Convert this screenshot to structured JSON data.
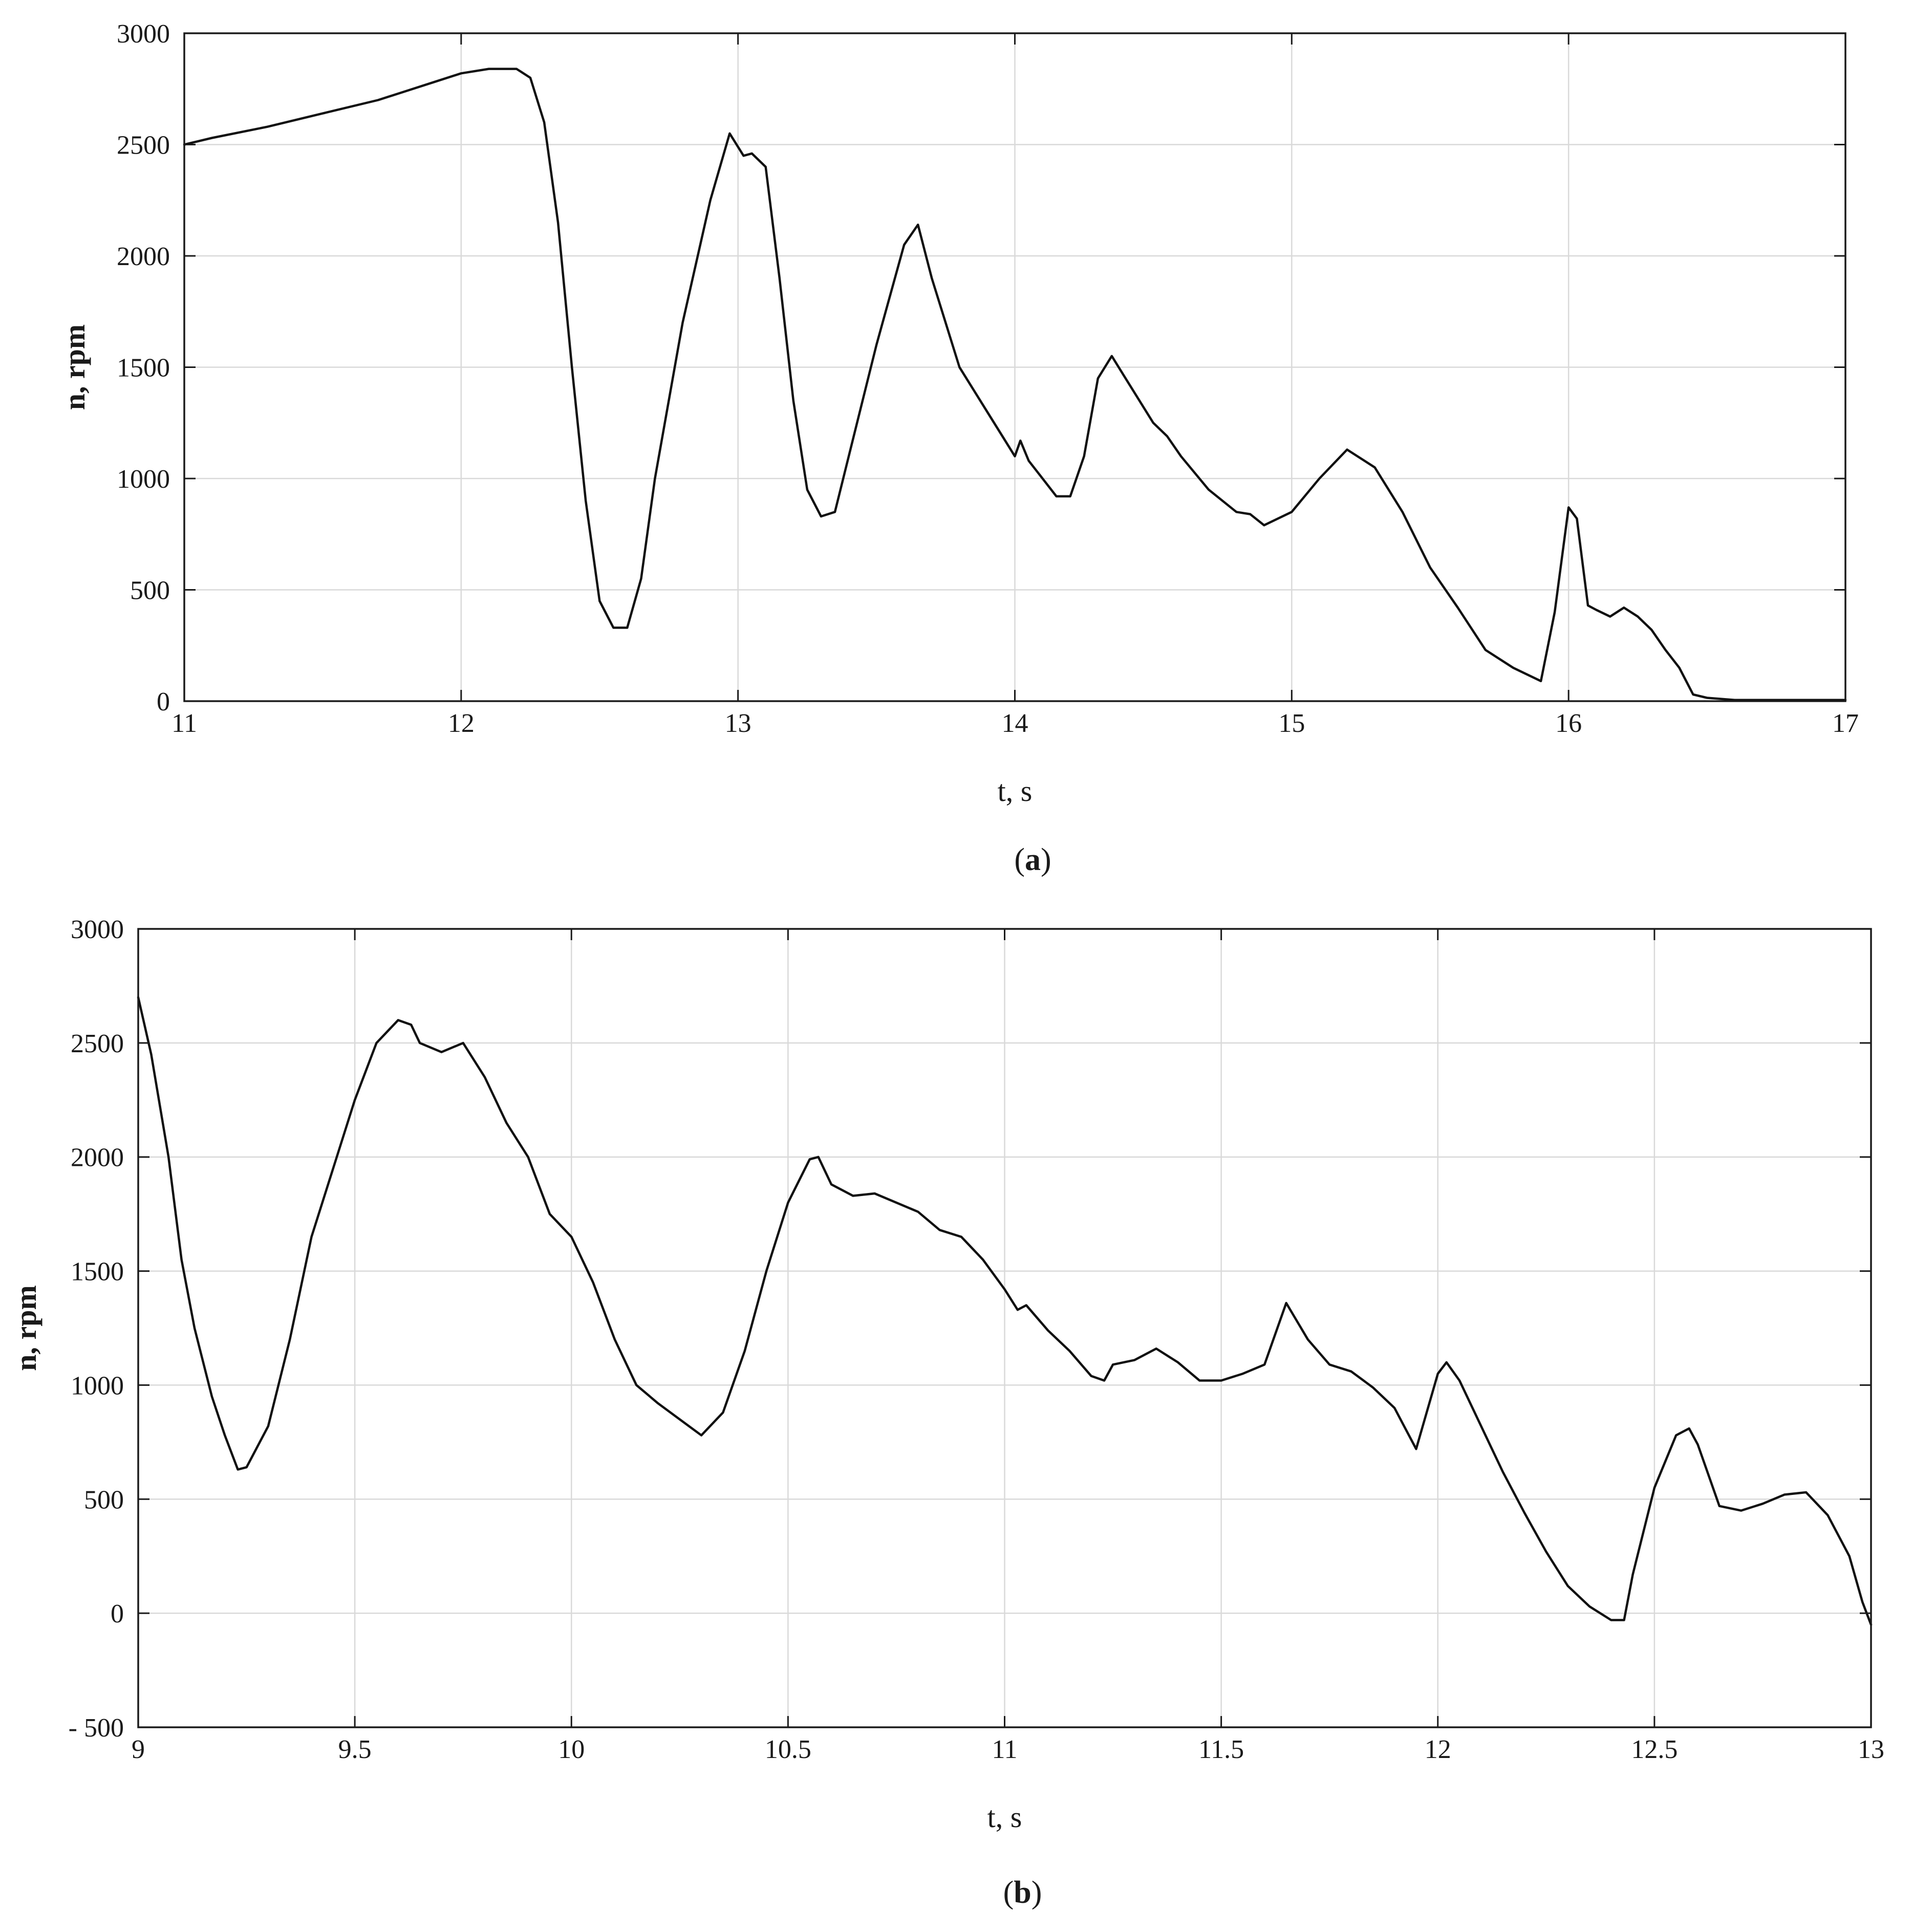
{
  "chart_data": [
    {
      "type": "line",
      "panel": "(a)",
      "caption": {
        "open": "(",
        "letter": "a",
        "close": ")"
      },
      "xlabel": "t, s",
      "ylabel": "n, rpm",
      "xlim": [
        11,
        17
      ],
      "ylim": [
        0,
        3000
      ],
      "xticks": [
        11,
        12,
        13,
        14,
        15,
        16,
        17
      ],
      "xtick_labels": [
        "11",
        "12",
        "13",
        "14",
        "15",
        "16",
        "17"
      ],
      "yticks": [
        0,
        500,
        1000,
        1500,
        2000,
        2500,
        3000
      ],
      "ytick_labels": [
        "0",
        "500",
        "1000",
        "1500",
        "2000",
        "2500",
        "3000"
      ],
      "grid": true,
      "series": [
        {
          "x": [
            11.0,
            11.1,
            11.3,
            11.5,
            11.7,
            11.8,
            11.9,
            12.0,
            12.1,
            12.2,
            12.25,
            12.3,
            12.35,
            12.4,
            12.45,
            12.5,
            12.55,
            12.6,
            12.65,
            12.7,
            12.8,
            12.9,
            12.97,
            13.02,
            13.05,
            13.1,
            13.15,
            13.2,
            13.25,
            13.3,
            13.35,
            13.4,
            13.5,
            13.6,
            13.65,
            13.7,
            13.8,
            13.9,
            13.95,
            14.0,
            14.02,
            14.05,
            14.1,
            14.15,
            14.2,
            14.25,
            14.3,
            14.35,
            14.4,
            14.5,
            14.55,
            14.6,
            14.7,
            14.8,
            14.85,
            14.9,
            15.0,
            15.1,
            15.2,
            15.3,
            15.4,
            15.5,
            15.6,
            15.7,
            15.8,
            15.85,
            15.9,
            15.95,
            16.0,
            16.03,
            16.07,
            16.1,
            16.15,
            16.2,
            16.25,
            16.3,
            16.35,
            16.4,
            16.45,
            16.5,
            16.6,
            16.8,
            17.0
          ],
          "y": [
            2500,
            2530,
            2580,
            2640,
            2700,
            2740,
            2780,
            2820,
            2840,
            2840,
            2800,
            2600,
            2150,
            1500,
            900,
            450,
            330,
            330,
            550,
            1000,
            1700,
            2250,
            2550,
            2450,
            2460,
            2400,
            1900,
            1350,
            950,
            830,
            850,
            1100,
            1600,
            2050,
            2140,
            1900,
            1500,
            1300,
            1200,
            1100,
            1170,
            1080,
            1000,
            920,
            920,
            1100,
            1450,
            1550,
            1450,
            1250,
            1190,
            1100,
            950,
            850,
            840,
            790,
            850,
            1000,
            1130,
            1050,
            850,
            600,
            420,
            230,
            150,
            120,
            90,
            400,
            870,
            820,
            430,
            410,
            380,
            420,
            380,
            320,
            230,
            150,
            30,
            15,
            5,
            5,
            5
          ]
        }
      ]
    },
    {
      "type": "line",
      "panel": "(b)",
      "caption": {
        "open": "(",
        "letter": "b",
        "close": ")"
      },
      "xlabel": "t, s",
      "ylabel": "n, rpm",
      "xlim": [
        9,
        13
      ],
      "ylim": [
        -500,
        3000
      ],
      "xticks": [
        9,
        9.5,
        10,
        10.5,
        11,
        11.5,
        12,
        12.5,
        13
      ],
      "xtick_labels": [
        "9",
        "9.5",
        "10",
        "10.5",
        "11",
        "11.5",
        "12",
        "12.5",
        "13"
      ],
      "yticks": [
        -500,
        0,
        500,
        1000,
        1500,
        2000,
        2500,
        3000
      ],
      "ytick_labels": [
        "- 500",
        "0",
        "500",
        "1000",
        "1500",
        "2000",
        "2500",
        "3000"
      ],
      "grid": true,
      "series": [
        {
          "x": [
            9.0,
            9.03,
            9.07,
            9.1,
            9.13,
            9.17,
            9.2,
            9.23,
            9.25,
            9.3,
            9.35,
            9.4,
            9.45,
            9.5,
            9.55,
            9.6,
            9.63,
            9.65,
            9.7,
            9.75,
            9.8,
            9.85,
            9.9,
            9.95,
            10.0,
            10.05,
            10.1,
            10.15,
            10.2,
            10.25,
            10.3,
            10.35,
            10.4,
            10.45,
            10.5,
            10.55,
            10.57,
            10.6,
            10.65,
            10.7,
            10.8,
            10.85,
            10.9,
            10.95,
            11.0,
            11.03,
            11.05,
            11.1,
            11.15,
            11.2,
            11.23,
            11.25,
            11.3,
            11.35,
            11.4,
            11.45,
            11.5,
            11.55,
            11.6,
            11.65,
            11.7,
            11.75,
            11.8,
            11.85,
            11.9,
            11.95,
            12.0,
            12.02,
            12.05,
            12.1,
            12.15,
            12.2,
            12.25,
            12.3,
            12.35,
            12.4,
            12.43,
            12.45,
            12.5,
            12.55,
            12.58,
            12.6,
            12.65,
            12.7,
            12.75,
            12.8,
            12.85,
            12.9,
            12.95,
            12.98,
            13.0
          ],
          "y": [
            2700,
            2450,
            2000,
            1550,
            1250,
            950,
            780,
            630,
            640,
            820,
            1200,
            1650,
            1950,
            2250,
            2500,
            2600,
            2580,
            2500,
            2460,
            2500,
            2350,
            2150,
            2000,
            1750,
            1650,
            1450,
            1200,
            1000,
            920,
            850,
            780,
            880,
            1150,
            1500,
            1800,
            1990,
            2000,
            1880,
            1830,
            1840,
            1760,
            1680,
            1650,
            1550,
            1420,
            1330,
            1350,
            1240,
            1150,
            1040,
            1020,
            1090,
            1110,
            1160,
            1100,
            1020,
            1020,
            1050,
            1090,
            1360,
            1200,
            1090,
            1060,
            990,
            900,
            720,
            1050,
            1100,
            1020,
            820,
            620,
            440,
            270,
            120,
            30,
            -30,
            -30,
            170,
            550,
            780,
            810,
            740,
            470,
            450,
            480,
            520,
            530,
            430,
            250,
            50,
            -50
          ]
        }
      ]
    }
  ]
}
